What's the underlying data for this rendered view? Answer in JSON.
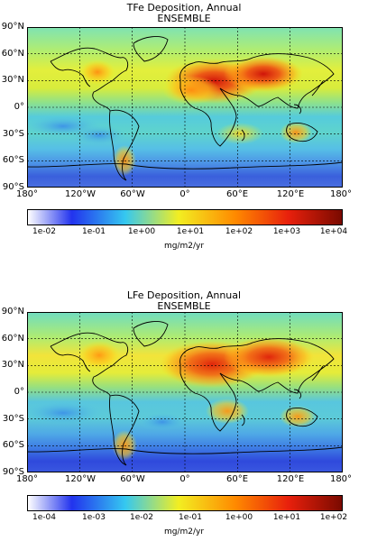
{
  "panels": [
    {
      "title": "TFe Deposition, Annual",
      "subtitle": "ENSEMBLE",
      "colorbar_ticks": [
        "1e-02",
        "1e-01",
        "1e+00",
        "1e+01",
        "1e+02",
        "1e+03",
        "1e+04"
      ],
      "colorbar_unit": "mg/m2/yr"
    },
    {
      "title": "LFe Deposition, Annual",
      "subtitle": "ENSEMBLE",
      "colorbar_ticks": [
        "1e-04",
        "1e-03",
        "1e-02",
        "1e-01",
        "1e+00",
        "1e+01",
        "1e+02"
      ],
      "colorbar_unit": "mg/m2/yr"
    }
  ],
  "lat_labels": [
    "90°N",
    "60°N",
    "30°N",
    "0°",
    "30°S",
    "60°S",
    "90°S"
  ],
  "lon_labels": [
    "180°",
    "120°W",
    "60°W",
    "0°",
    "60°E",
    "120°E",
    "180°"
  ],
  "colormap": [
    "#ffffff",
    "#2233ee",
    "#35c8f0",
    "#f2ee22",
    "#ff8a00",
    "#e8200c",
    "#7a0a00"
  ]
}
